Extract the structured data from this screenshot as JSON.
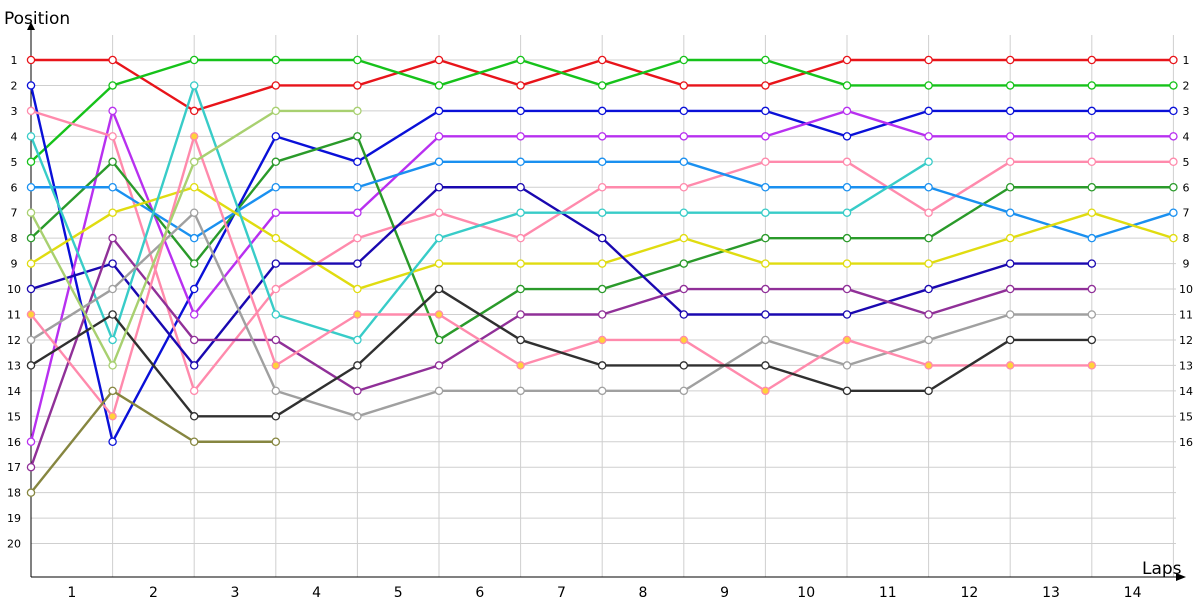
{
  "chart_data": {
    "type": "line",
    "title": "",
    "ylabel": "Position",
    "xlabel": "Laps",
    "x": [
      0,
      1,
      2,
      3,
      4,
      5,
      6,
      7,
      8,
      9,
      10,
      11,
      12,
      13,
      14
    ],
    "xticks": [
      "1",
      "2",
      "3",
      "4",
      "5",
      "6",
      "7",
      "8",
      "9",
      "10",
      "11",
      "12",
      "13",
      "14"
    ],
    "yticks": [
      "1",
      "2",
      "3",
      "4",
      "5",
      "6",
      "7",
      "8",
      "9",
      "10",
      "11",
      "12",
      "13",
      "14",
      "15",
      "16",
      "17",
      "18",
      "19",
      "20"
    ],
    "ylim": [
      1,
      20
    ],
    "y_inverted": true,
    "grid": true,
    "series": [
      {
        "color": "#e8141a",
        "values": [
          1,
          1,
          3,
          2,
          2,
          1,
          2,
          1,
          2,
          2,
          1,
          1,
          1,
          1,
          1
        ]
      },
      {
        "color": "#16c21a",
        "values": [
          5,
          2,
          1,
          1,
          1,
          2,
          1,
          2,
          1,
          1,
          2,
          2,
          2,
          2,
          2
        ]
      },
      {
        "color": "#0a10d8",
        "values": [
          2,
          16,
          10,
          4,
          5,
          3,
          3,
          3,
          3,
          3,
          4,
          3,
          3,
          3,
          3
        ]
      },
      {
        "color": "#b830f0",
        "values": [
          16,
          3,
          11,
          7,
          7,
          4,
          4,
          4,
          4,
          4,
          3,
          4,
          4,
          4,
          4
        ]
      },
      {
        "color": "#ff8aac",
        "values": [
          3,
          4,
          14,
          10,
          8,
          7,
          8,
          6,
          6,
          5,
          5,
          7,
          5,
          5,
          5
        ]
      },
      {
        "color": "#2a9a2a",
        "values": [
          8,
          5,
          9,
          5,
          4,
          12,
          10,
          10,
          9,
          8,
          8,
          8,
          6,
          6,
          6
        ]
      },
      {
        "color": "#1a90f0",
        "values": [
          6,
          6,
          8,
          6,
          6,
          5,
          5,
          5,
          5,
          6,
          6,
          6,
          7,
          8,
          7
        ]
      },
      {
        "color": "#e0dc10",
        "values": [
          9,
          7,
          6,
          8,
          10,
          9,
          9,
          9,
          8,
          9,
          9,
          9,
          8,
          7,
          8
        ]
      },
      {
        "color": "#1a08b0",
        "values": [
          10,
          9,
          13,
          9,
          9,
          6,
          6,
          8,
          11,
          11,
          11,
          10,
          9,
          9,
          null
        ]
      },
      {
        "color": "#38ccc8",
        "values": [
          4,
          12,
          2,
          11,
          12,
          8,
          7,
          7,
          7,
          7,
          7,
          5,
          null,
          null,
          null
        ]
      },
      {
        "color": "#903098",
        "values": [
          17,
          8,
          12,
          12,
          14,
          13,
          11,
          11,
          10,
          10,
          10,
          11,
          10,
          10,
          null
        ]
      },
      {
        "color": "#a0a0a0",
        "values": [
          12,
          10,
          7,
          14,
          15,
          14,
          14,
          14,
          14,
          12,
          13,
          12,
          11,
          11,
          null
        ]
      },
      {
        "color": "#ff8aac",
        "values": [
          11,
          15,
          4,
          13,
          11,
          11,
          13,
          12,
          12,
          14,
          12,
          13,
          13,
          13,
          null
        ]
      },
      {
        "color": "#303030",
        "values": [
          13,
          11,
          15,
          15,
          13,
          10,
          12,
          13,
          13,
          13,
          14,
          14,
          12,
          12,
          null
        ]
      },
      {
        "color": "#a8d070",
        "values": [
          7,
          13,
          5,
          3,
          3,
          null,
          null,
          null,
          null,
          null,
          null,
          null,
          null,
          null,
          null
        ]
      },
      {
        "color": "#868640",
        "values": [
          18,
          14,
          16,
          16,
          null,
          null,
          null,
          null,
          null,
          null,
          null,
          null,
          null,
          null,
          null
        ]
      }
    ]
  }
}
